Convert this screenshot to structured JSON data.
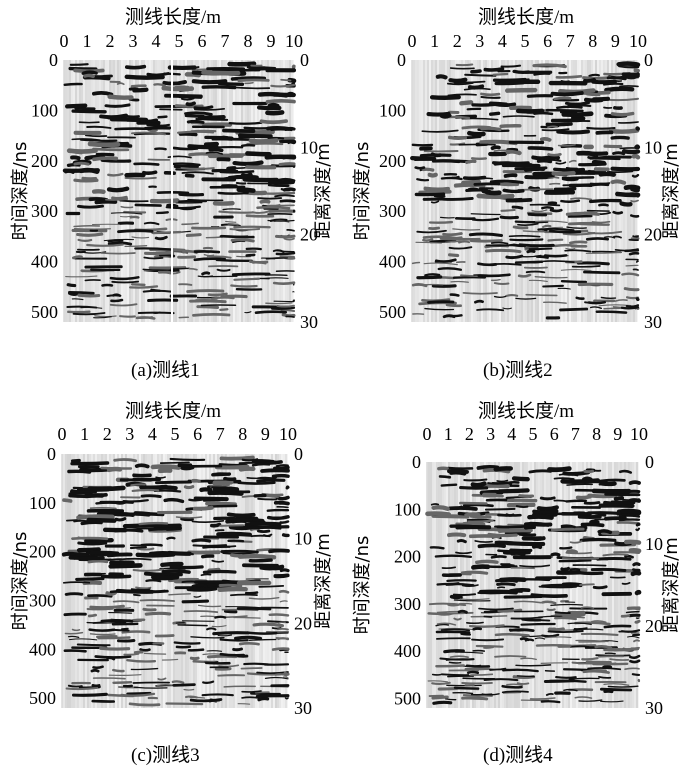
{
  "chart_data": [
    {
      "type": "heatmap",
      "title": "(a)测线1",
      "xlabel": "测线长度/m",
      "ylabel_left": "时间深度/ns",
      "ylabel_right": "距离深度/m",
      "xlim": [
        0,
        10
      ],
      "x_ticks": [
        "0",
        "1",
        "2",
        "3",
        "4",
        "5",
        "6",
        "7",
        "8",
        "9",
        "10"
      ],
      "ylim_left": [
        0,
        520
      ],
      "y_ticks_left": [
        "0",
        "100",
        "200",
        "300",
        "400",
        "500"
      ],
      "ylim_right": [
        0,
        30
      ],
      "y_ticks_right": [
        "0",
        "10",
        "20",
        "30"
      ],
      "colormap": "grayscale wiggle"
    },
    {
      "type": "heatmap",
      "title": "(b)测线2",
      "xlabel": "测线长度/m",
      "ylabel_left": "时间深度/ns",
      "ylabel_right": "距离深度/m",
      "xlim": [
        0,
        10
      ],
      "x_ticks": [
        "0",
        "1",
        "2",
        "3",
        "4",
        "5",
        "6",
        "7",
        "8",
        "9",
        "10"
      ],
      "ylim_left": [
        0,
        520
      ],
      "y_ticks_left": [
        "0",
        "100",
        "200",
        "300",
        "400",
        "500"
      ],
      "ylim_right": [
        0,
        30
      ],
      "y_ticks_right": [
        "0",
        "10",
        "20",
        "30"
      ],
      "colormap": "grayscale wiggle"
    },
    {
      "type": "heatmap",
      "title": "(c)测线3",
      "xlabel": "测线长度/m",
      "ylabel_left": "时间深度/ns",
      "ylabel_right": "距离深度/m",
      "xlim": [
        0,
        10
      ],
      "x_ticks": [
        "0",
        "1",
        "2",
        "3",
        "4",
        "5",
        "6",
        "7",
        "8",
        "9",
        "10"
      ],
      "ylim_left": [
        0,
        520
      ],
      "y_ticks_left": [
        "0",
        "100",
        "200",
        "300",
        "400",
        "500"
      ],
      "ylim_right": [
        0,
        30
      ],
      "y_ticks_right": [
        "0",
        "10",
        "20",
        "30"
      ],
      "colormap": "grayscale wiggle"
    },
    {
      "type": "heatmap",
      "title": "(d)测线4",
      "xlabel": "测线长度/m",
      "ylabel_left": "时间深度/ns",
      "ylabel_right": "距离深度/m",
      "xlim": [
        0,
        10
      ],
      "x_ticks": [
        "0",
        "1",
        "2",
        "3",
        "4",
        "5",
        "6",
        "7",
        "8",
        "9",
        "10"
      ],
      "ylim_left": [
        0,
        520
      ],
      "y_ticks_left": [
        "0",
        "100",
        "200",
        "300",
        "400",
        "500"
      ],
      "ylim_right": [
        0,
        30
      ],
      "y_ticks_right": [
        "0",
        "10",
        "20",
        "30"
      ],
      "colormap": "grayscale wiggle"
    }
  ]
}
